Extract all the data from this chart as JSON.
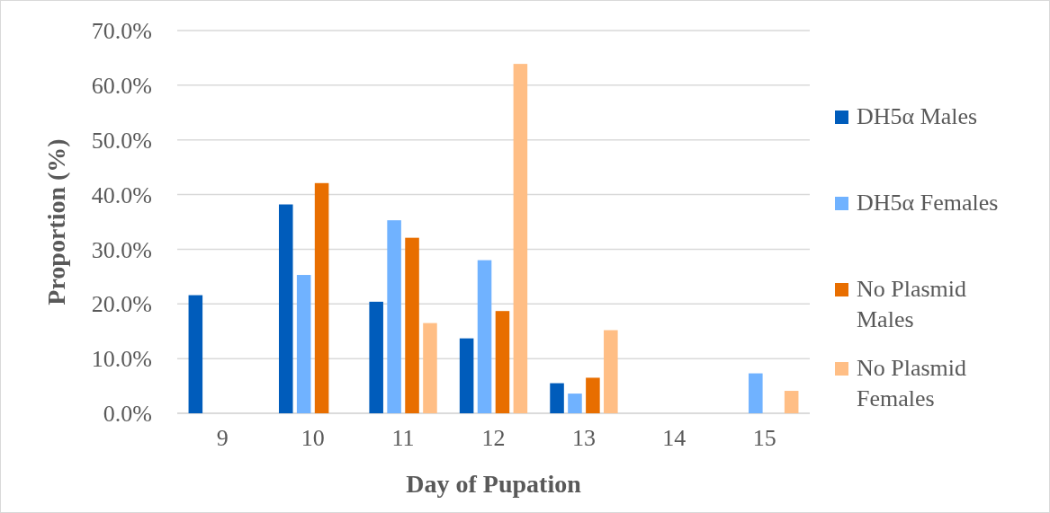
{
  "chart_data": {
    "type": "bar",
    "xlabel": "Day of Pupation",
    "ylabel": "Proportion (%)",
    "categories": [
      "9",
      "10",
      "11",
      "12",
      "13",
      "14",
      "15"
    ],
    "series": [
      {
        "name": "DH5α Males",
        "color": "#005cbb",
        "values": [
          21.6,
          38.2,
          20.4,
          13.7,
          5.5,
          0,
          0
        ]
      },
      {
        "name": "DH5α Females",
        "color": "#70b2ff",
        "values": [
          0,
          25.3,
          35.3,
          28.0,
          3.6,
          0,
          7.3
        ]
      },
      {
        "name": "No Plasmid Males",
        "color": "#e86e00",
        "values": [
          0,
          42.1,
          32.1,
          18.7,
          6.5,
          0,
          0
        ]
      },
      {
        "name": "No Plasmid Females",
        "color": "#ffbe85",
        "values": [
          0,
          0,
          16.5,
          63.9,
          15.2,
          0,
          4.1
        ]
      }
    ],
    "ylim": [
      0,
      70
    ],
    "yticks": [
      {
        "value": 0,
        "label": "0.0%"
      },
      {
        "value": 10,
        "label": "10.0%"
      },
      {
        "value": 20,
        "label": "20.0%"
      },
      {
        "value": 30,
        "label": "30.0%"
      },
      {
        "value": 40,
        "label": "40.0%"
      },
      {
        "value": 50,
        "label": "50.0%"
      },
      {
        "value": 60,
        "label": "60.0%"
      },
      {
        "value": 70,
        "label": "70.0%"
      }
    ],
    "grid": "y",
    "legend": "right"
  }
}
